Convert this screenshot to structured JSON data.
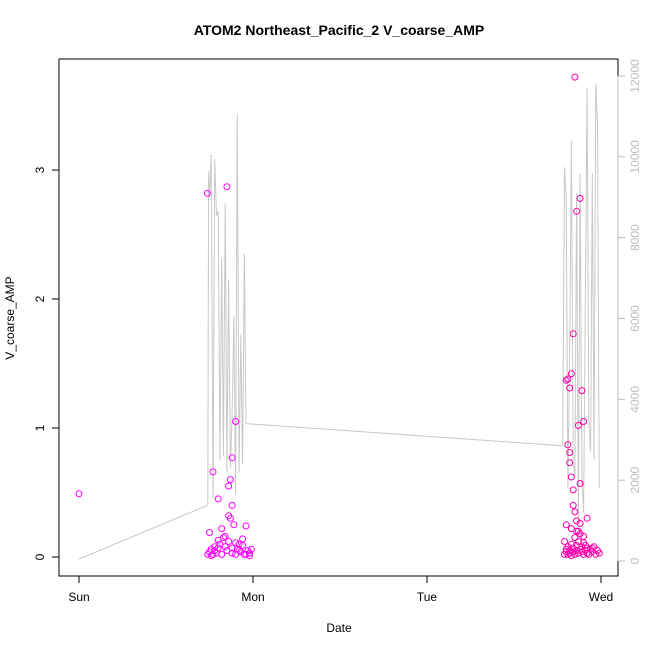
{
  "chart_data": {
    "type": "scatter",
    "title": "ATOM2 Northeast_Pacific_2 V_coarse_AMP",
    "xlabel": "Date",
    "ylabel": "V_coarse_AMP",
    "ylim": [
      0,
      3.8
    ],
    "y2lim": [
      0,
      12300
    ],
    "x_axis_unit": "days (Sun 00:00 = 0)",
    "x_ticks": [
      {
        "label": "Sun",
        "value": 0
      },
      {
        "label": "Mon",
        "value": 1
      },
      {
        "label": "Tue",
        "value": 2
      },
      {
        "label": "Wed",
        "value": 3
      }
    ],
    "y_ticks": [
      {
        "label": "0",
        "value": 0
      },
      {
        "label": "1",
        "value": 1
      },
      {
        "label": "2",
        "value": 2
      },
      {
        "label": "3",
        "value": 3
      }
    ],
    "y2_ticks": [
      {
        "label": "0",
        "value": 0
      },
      {
        "label": "2000",
        "value": 2000
      },
      {
        "label": "4000",
        "value": 4000
      },
      {
        "label": "6000",
        "value": 6000
      },
      {
        "label": "8000",
        "value": 8000
      },
      {
        "label": "10000",
        "value": 10000
      },
      {
        "label": "12000",
        "value": 12000
      }
    ],
    "grid": false,
    "colors": {
      "points_group1": "#ff00ff",
      "points_group2": "#ff00aa",
      "line": "#c8c8c8",
      "axis": "#000000",
      "right_axis": "#bdbdbd"
    },
    "series": [
      {
        "kind": "points",
        "color": "#ff00ff",
        "points": [
          [
            0.0,
            0.49
          ],
          [
            0.738,
            2.82
          ],
          [
            0.75,
            0.19
          ],
          [
            0.77,
            0.66
          ],
          [
            0.8,
            0.45
          ],
          [
            0.85,
            2.87
          ],
          [
            0.86,
            0.55
          ],
          [
            0.88,
            0.77
          ],
          [
            0.87,
            0.6
          ],
          [
            0.88,
            0.4
          ],
          [
            0.9,
            1.05
          ],
          [
            0.75,
            0.04
          ],
          [
            0.76,
            0.06
          ],
          [
            0.77,
            0.02
          ],
          [
            0.78,
            0.05
          ],
          [
            0.79,
            0.03
          ],
          [
            0.8,
            0.07
          ],
          [
            0.81,
            0.1
          ],
          [
            0.82,
            0.02
          ],
          [
            0.83,
            0.15
          ],
          [
            0.84,
            0.08
          ],
          [
            0.85,
            0.05
          ],
          [
            0.86,
            0.12
          ],
          [
            0.87,
            0.3
          ],
          [
            0.88,
            0.03
          ],
          [
            0.89,
            0.25
          ],
          [
            0.9,
            0.02
          ],
          [
            0.91,
            0.06
          ],
          [
            0.92,
            0.1
          ],
          [
            0.93,
            0.04
          ],
          [
            0.94,
            0.09
          ],
          [
            0.95,
            0.02
          ],
          [
            0.96,
            0.24
          ],
          [
            0.97,
            0.05
          ],
          [
            0.98,
            0.03
          ],
          [
            0.99,
            0.06
          ],
          [
            0.74,
            0.02
          ],
          [
            0.76,
            0.01
          ],
          [
            0.78,
            0.08
          ],
          [
            0.8,
            0.13
          ],
          [
            0.82,
            0.22
          ],
          [
            0.84,
            0.16
          ],
          [
            0.86,
            0.32
          ],
          [
            0.88,
            0.07
          ],
          [
            0.9,
            0.11
          ],
          [
            0.92,
            0.05
          ],
          [
            0.94,
            0.14
          ],
          [
            0.96,
            0.02
          ],
          [
            0.98,
            0.01
          ]
        ]
      },
      {
        "kind": "points",
        "color": "#ff00aa",
        "points": [
          [
            2.8,
            1.37
          ],
          [
            2.81,
            1.38
          ],
          [
            2.82,
            1.31
          ],
          [
            2.83,
            1.42
          ],
          [
            2.84,
            1.73
          ],
          [
            2.85,
            3.72
          ],
          [
            2.86,
            2.68
          ],
          [
            2.87,
            1.02
          ],
          [
            2.88,
            2.78
          ],
          [
            2.89,
            1.29
          ],
          [
            2.9,
            1.05
          ],
          [
            2.81,
            0.87
          ],
          [
            2.82,
            0.81
          ],
          [
            2.82,
            0.73
          ],
          [
            2.83,
            0.62
          ],
          [
            2.84,
            0.52
          ],
          [
            2.84,
            0.4
          ],
          [
            2.85,
            0.35
          ],
          [
            2.86,
            0.28
          ],
          [
            2.87,
            0.2
          ],
          [
            2.88,
            0.57
          ],
          [
            2.92,
            0.3
          ],
          [
            2.79,
            0.12
          ],
          [
            2.79,
            0.02
          ],
          [
            2.8,
            0.04
          ],
          [
            2.8,
            0.06
          ],
          [
            2.81,
            0.02
          ],
          [
            2.81,
            0.08
          ],
          [
            2.82,
            0.03
          ],
          [
            2.82,
            0.05
          ],
          [
            2.83,
            0.01
          ],
          [
            2.83,
            0.1
          ],
          [
            2.84,
            0.04
          ],
          [
            2.84,
            0.07
          ],
          [
            2.85,
            0.02
          ],
          [
            2.85,
            0.15
          ],
          [
            2.86,
            0.05
          ],
          [
            2.86,
            0.09
          ],
          [
            2.87,
            0.03
          ],
          [
            2.87,
            0.12
          ],
          [
            2.88,
            0.06
          ],
          [
            2.88,
            0.18
          ],
          [
            2.89,
            0.04
          ],
          [
            2.89,
            0.08
          ],
          [
            2.9,
            0.02
          ],
          [
            2.9,
            0.11
          ],
          [
            2.91,
            0.05
          ],
          [
            2.91,
            0.09
          ],
          [
            2.92,
            0.03
          ],
          [
            2.92,
            0.07
          ],
          [
            2.93,
            0.02
          ],
          [
            2.94,
            0.06
          ],
          [
            2.95,
            0.04
          ],
          [
            2.96,
            0.08
          ],
          [
            2.97,
            0.02
          ],
          [
            2.98,
            0.05
          ],
          [
            2.99,
            0.03
          ],
          [
            2.8,
            0.25
          ],
          [
            2.83,
            0.22
          ],
          [
            2.86,
            0.2
          ],
          [
            2.88,
            0.26
          ],
          [
            2.9,
            0.16
          ],
          [
            2.95,
            0.07
          ]
        ]
      },
      {
        "kind": "line",
        "axis": "right",
        "color": "#c8c8c8",
        "points": [
          [
            0.0,
            50
          ],
          [
            0.74,
            1380
          ],
          [
            0.745,
            9650
          ],
          [
            0.75,
            9000
          ],
          [
            0.76,
            10050
          ],
          [
            0.77,
            1550
          ],
          [
            0.78,
            9950
          ],
          [
            0.79,
            8550
          ],
          [
            0.8,
            8650
          ],
          [
            0.81,
            2500
          ],
          [
            0.82,
            7500
          ],
          [
            0.83,
            2600
          ],
          [
            0.84,
            8850
          ],
          [
            0.85,
            2200
          ],
          [
            0.86,
            6950
          ],
          [
            0.87,
            2300
          ],
          [
            0.88,
            3650
          ],
          [
            0.89,
            6050
          ],
          [
            0.9,
            1650
          ],
          [
            0.91,
            11050
          ],
          [
            0.92,
            2200
          ],
          [
            0.93,
            5600
          ],
          [
            0.94,
            2400
          ],
          [
            0.95,
            7600
          ],
          [
            0.96,
            3400
          ],
          [
            2.78,
            2850
          ],
          [
            2.79,
            9740
          ],
          [
            2.8,
            9000
          ],
          [
            2.81,
            1800
          ],
          [
            2.82,
            5200
          ],
          [
            2.83,
            10400
          ],
          [
            2.84,
            2500
          ],
          [
            2.85,
            2100
          ],
          [
            2.86,
            9100
          ],
          [
            2.87,
            1000
          ],
          [
            2.88,
            9580
          ],
          [
            2.89,
            2050
          ],
          [
            2.9,
            1200
          ],
          [
            2.91,
            6300
          ],
          [
            2.92,
            11700
          ],
          [
            2.93,
            3500
          ],
          [
            2.94,
            2700
          ],
          [
            2.95,
            9600
          ],
          [
            2.96,
            2500
          ],
          [
            2.97,
            11800
          ],
          [
            2.98,
            10800
          ],
          [
            2.99,
            1800
          ]
        ]
      }
    ]
  }
}
